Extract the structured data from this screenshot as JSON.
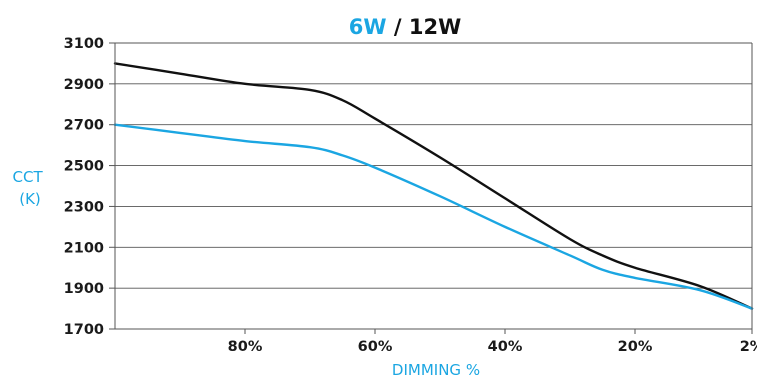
{
  "chart_data": {
    "type": "line",
    "title_parts": [
      {
        "text": "6W",
        "color": "#1ba6e2"
      },
      {
        "text": " / ",
        "color": "#111111"
      },
      {
        "text": "12W",
        "color": "#111111"
      }
    ],
    "xlabel": "DIMMING %",
    "ylabel_lines": [
      "CCT",
      "(K)"
    ],
    "label_color": "#1ba6e2",
    "x_ticks": [
      {
        "value": 80,
        "label": "80%"
      },
      {
        "value": 60,
        "label": "60%"
      },
      {
        "value": 40,
        "label": "40%"
      },
      {
        "value": 20,
        "label": "20%"
      },
      {
        "value": 2,
        "label": "2%"
      }
    ],
    "xlim": [
      100,
      2
    ],
    "y_ticks": [
      1700,
      1900,
      2100,
      2300,
      2500,
      2700,
      2900,
      3100
    ],
    "ylim": [
      1700,
      3100
    ],
    "grid": true,
    "series": [
      {
        "name": "12W",
        "color": "#111111",
        "points": [
          [
            100,
            3000
          ],
          [
            90,
            2950
          ],
          [
            80,
            2900
          ],
          [
            70,
            2870
          ],
          [
            65,
            2820
          ],
          [
            60,
            2730
          ],
          [
            50,
            2540
          ],
          [
            40,
            2340
          ],
          [
            30,
            2140
          ],
          [
            25,
            2060
          ],
          [
            20,
            2000
          ],
          [
            10,
            1910
          ],
          [
            2,
            1800
          ]
        ]
      },
      {
        "name": "6W",
        "color": "#1ba6e2",
        "points": [
          [
            100,
            2700
          ],
          [
            90,
            2660
          ],
          [
            80,
            2620
          ],
          [
            70,
            2590
          ],
          [
            65,
            2550
          ],
          [
            60,
            2490
          ],
          [
            50,
            2350
          ],
          [
            40,
            2200
          ],
          [
            30,
            2060
          ],
          [
            25,
            1990
          ],
          [
            20,
            1950
          ],
          [
            10,
            1890
          ],
          [
            2,
            1800
          ]
        ]
      }
    ]
  }
}
